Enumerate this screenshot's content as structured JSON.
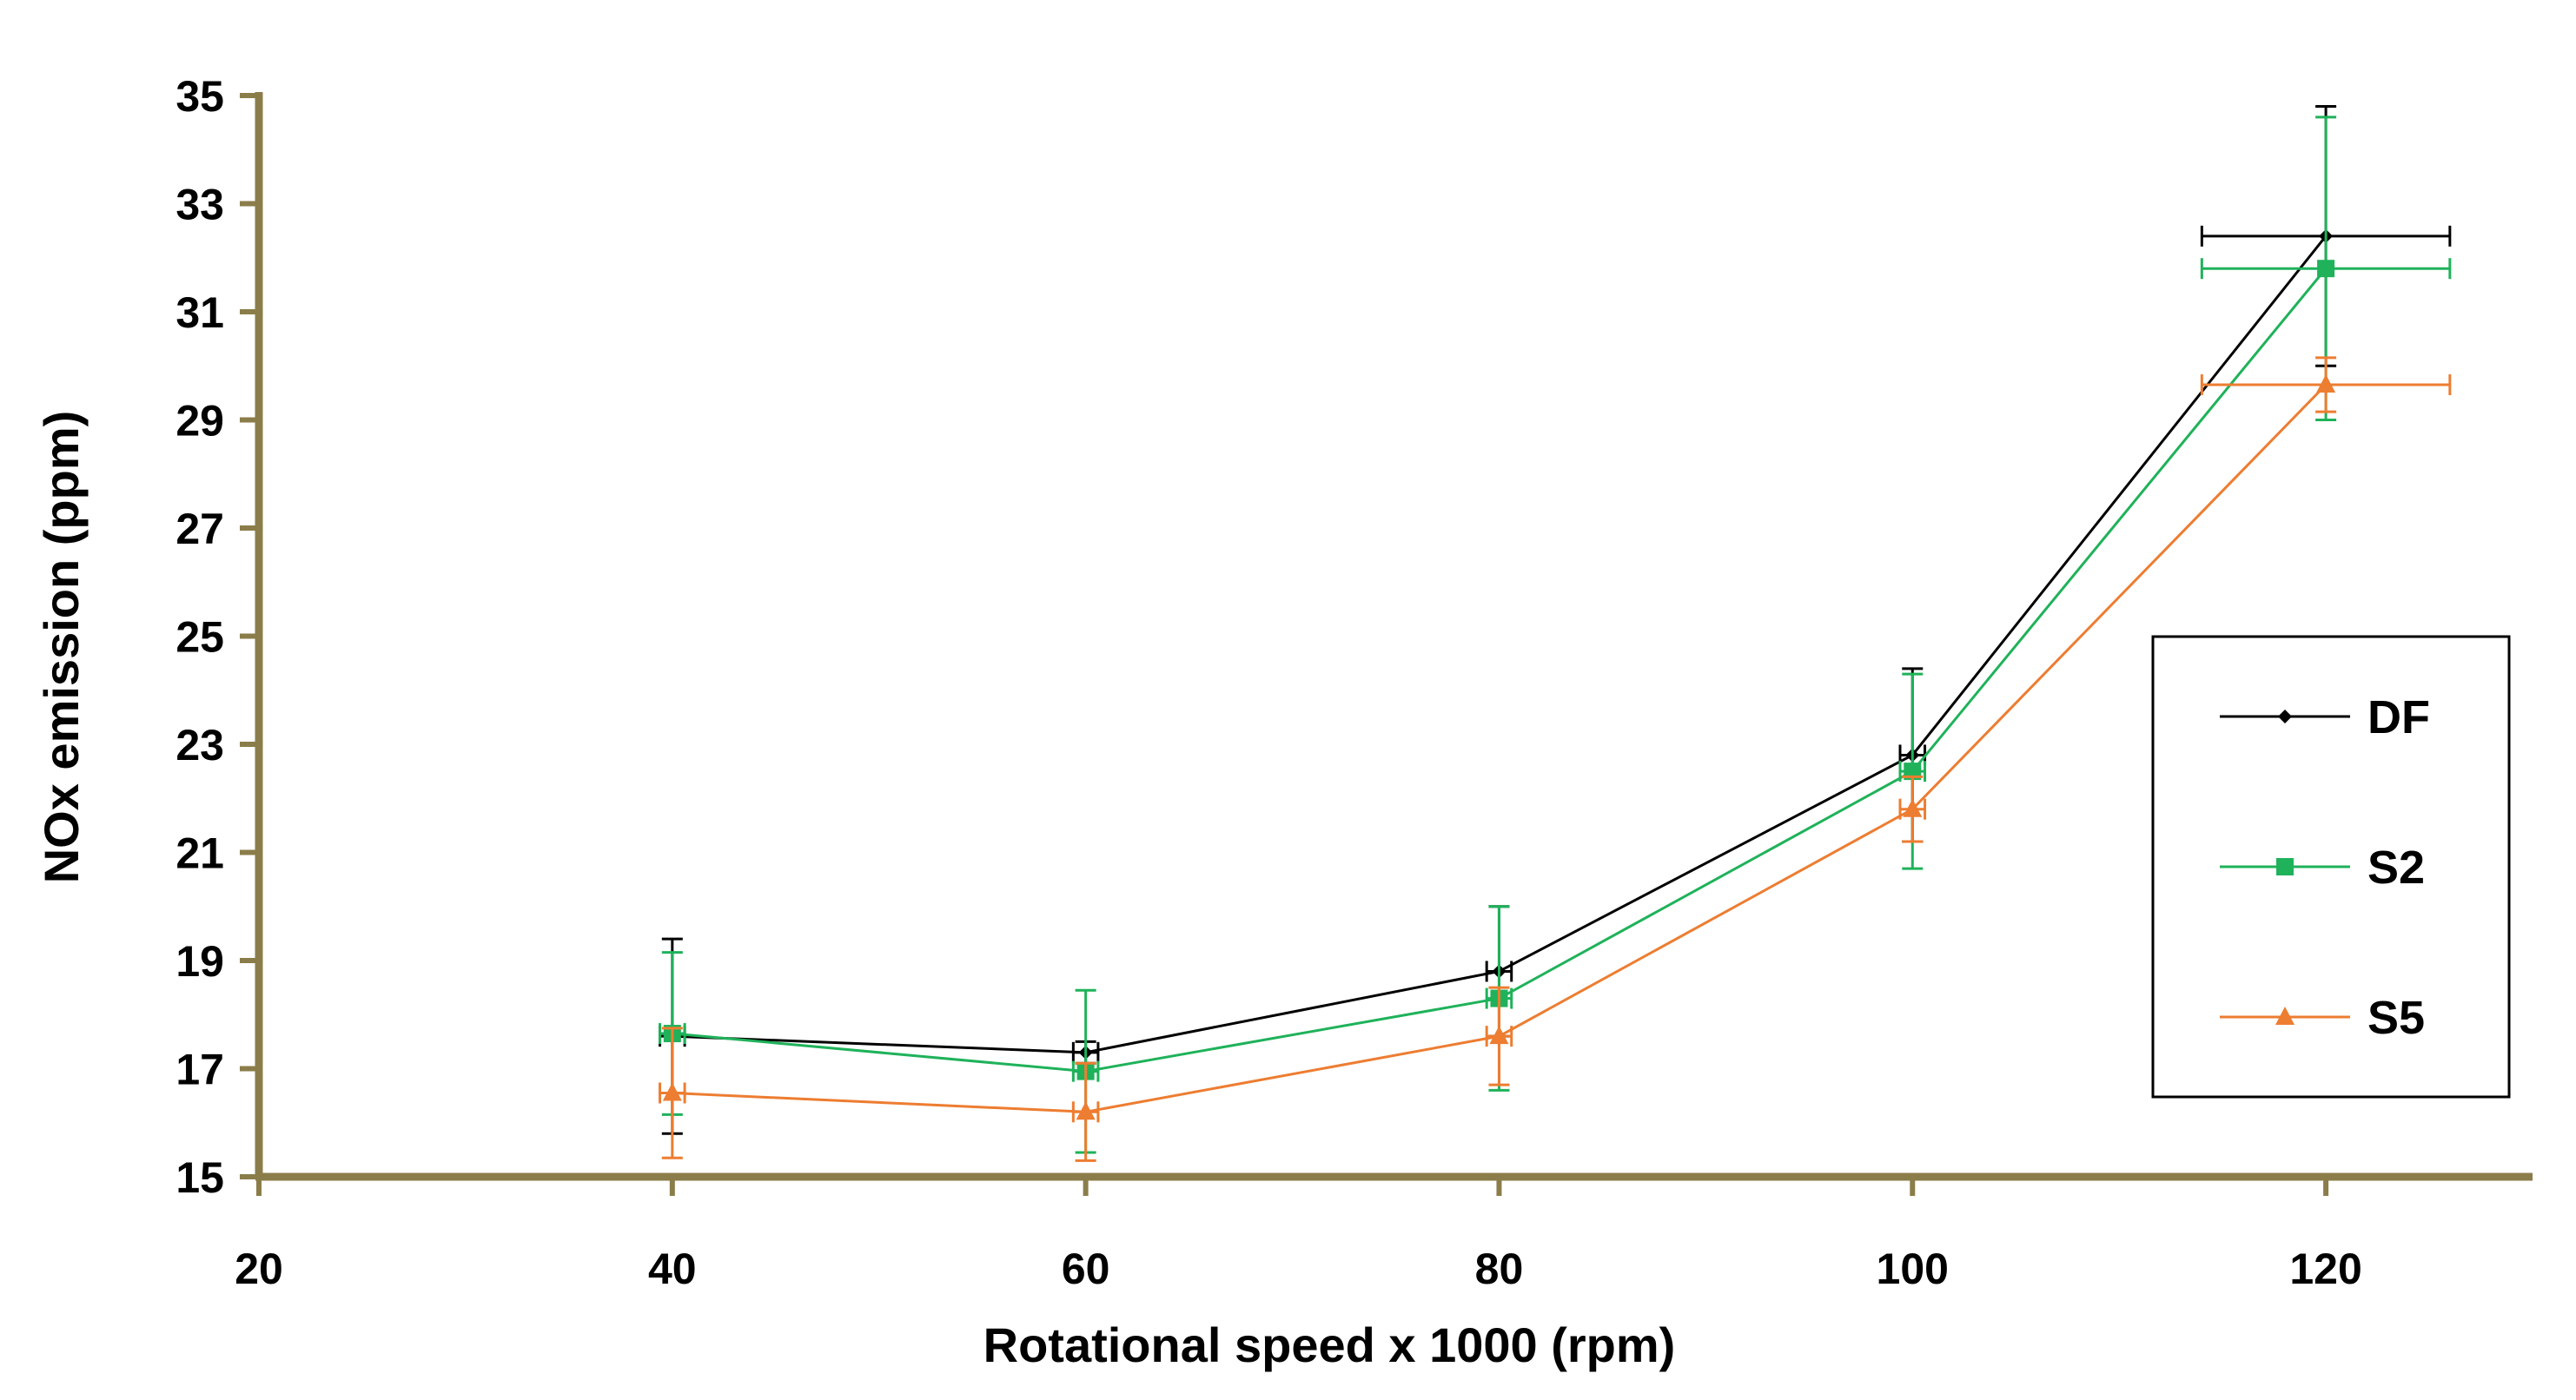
{
  "chart_data": {
    "type": "line",
    "title": "",
    "xlabel": "Rotational speed x 1000 (rpm)",
    "ylabel": "NOx emission (ppm)",
    "xlim": [
      20,
      130
    ],
    "ylim": [
      15,
      35
    ],
    "x_ticks": [
      20,
      40,
      60,
      80,
      100,
      120
    ],
    "y_ticks": [
      15,
      17,
      19,
      21,
      23,
      25,
      27,
      29,
      31,
      33,
      35
    ],
    "grid": false,
    "legend_position": "right",
    "axis_color": "#8B7D4A",
    "x": [
      40,
      60,
      80,
      100,
      120
    ],
    "series": [
      {
        "name": "DF",
        "color": "#000000",
        "marker": "diamond",
        "values": [
          17.6,
          17.3,
          18.8,
          22.8,
          32.4
        ],
        "y_err": [
          1.8,
          0.2,
          1.2,
          1.6,
          2.4
        ],
        "x_err": [
          0.6,
          0.6,
          0.6,
          0.6,
          6.0
        ]
      },
      {
        "name": "S2",
        "color": "#1FB25A",
        "marker": "square",
        "values": [
          17.65,
          16.95,
          18.3,
          22.5,
          31.8
        ],
        "y_err": [
          1.5,
          1.5,
          1.7,
          1.8,
          2.8
        ],
        "x_err": [
          0.6,
          0.6,
          0.6,
          0.6,
          6.0
        ]
      },
      {
        "name": "S5",
        "color": "#ED7D31",
        "marker": "triangle",
        "values": [
          16.55,
          16.2,
          17.6,
          21.8,
          29.65
        ],
        "y_err": [
          1.2,
          0.9,
          0.9,
          0.6,
          0.5
        ],
        "x_err": [
          0.6,
          0.6,
          0.6,
          0.6,
          6.0
        ]
      }
    ]
  }
}
